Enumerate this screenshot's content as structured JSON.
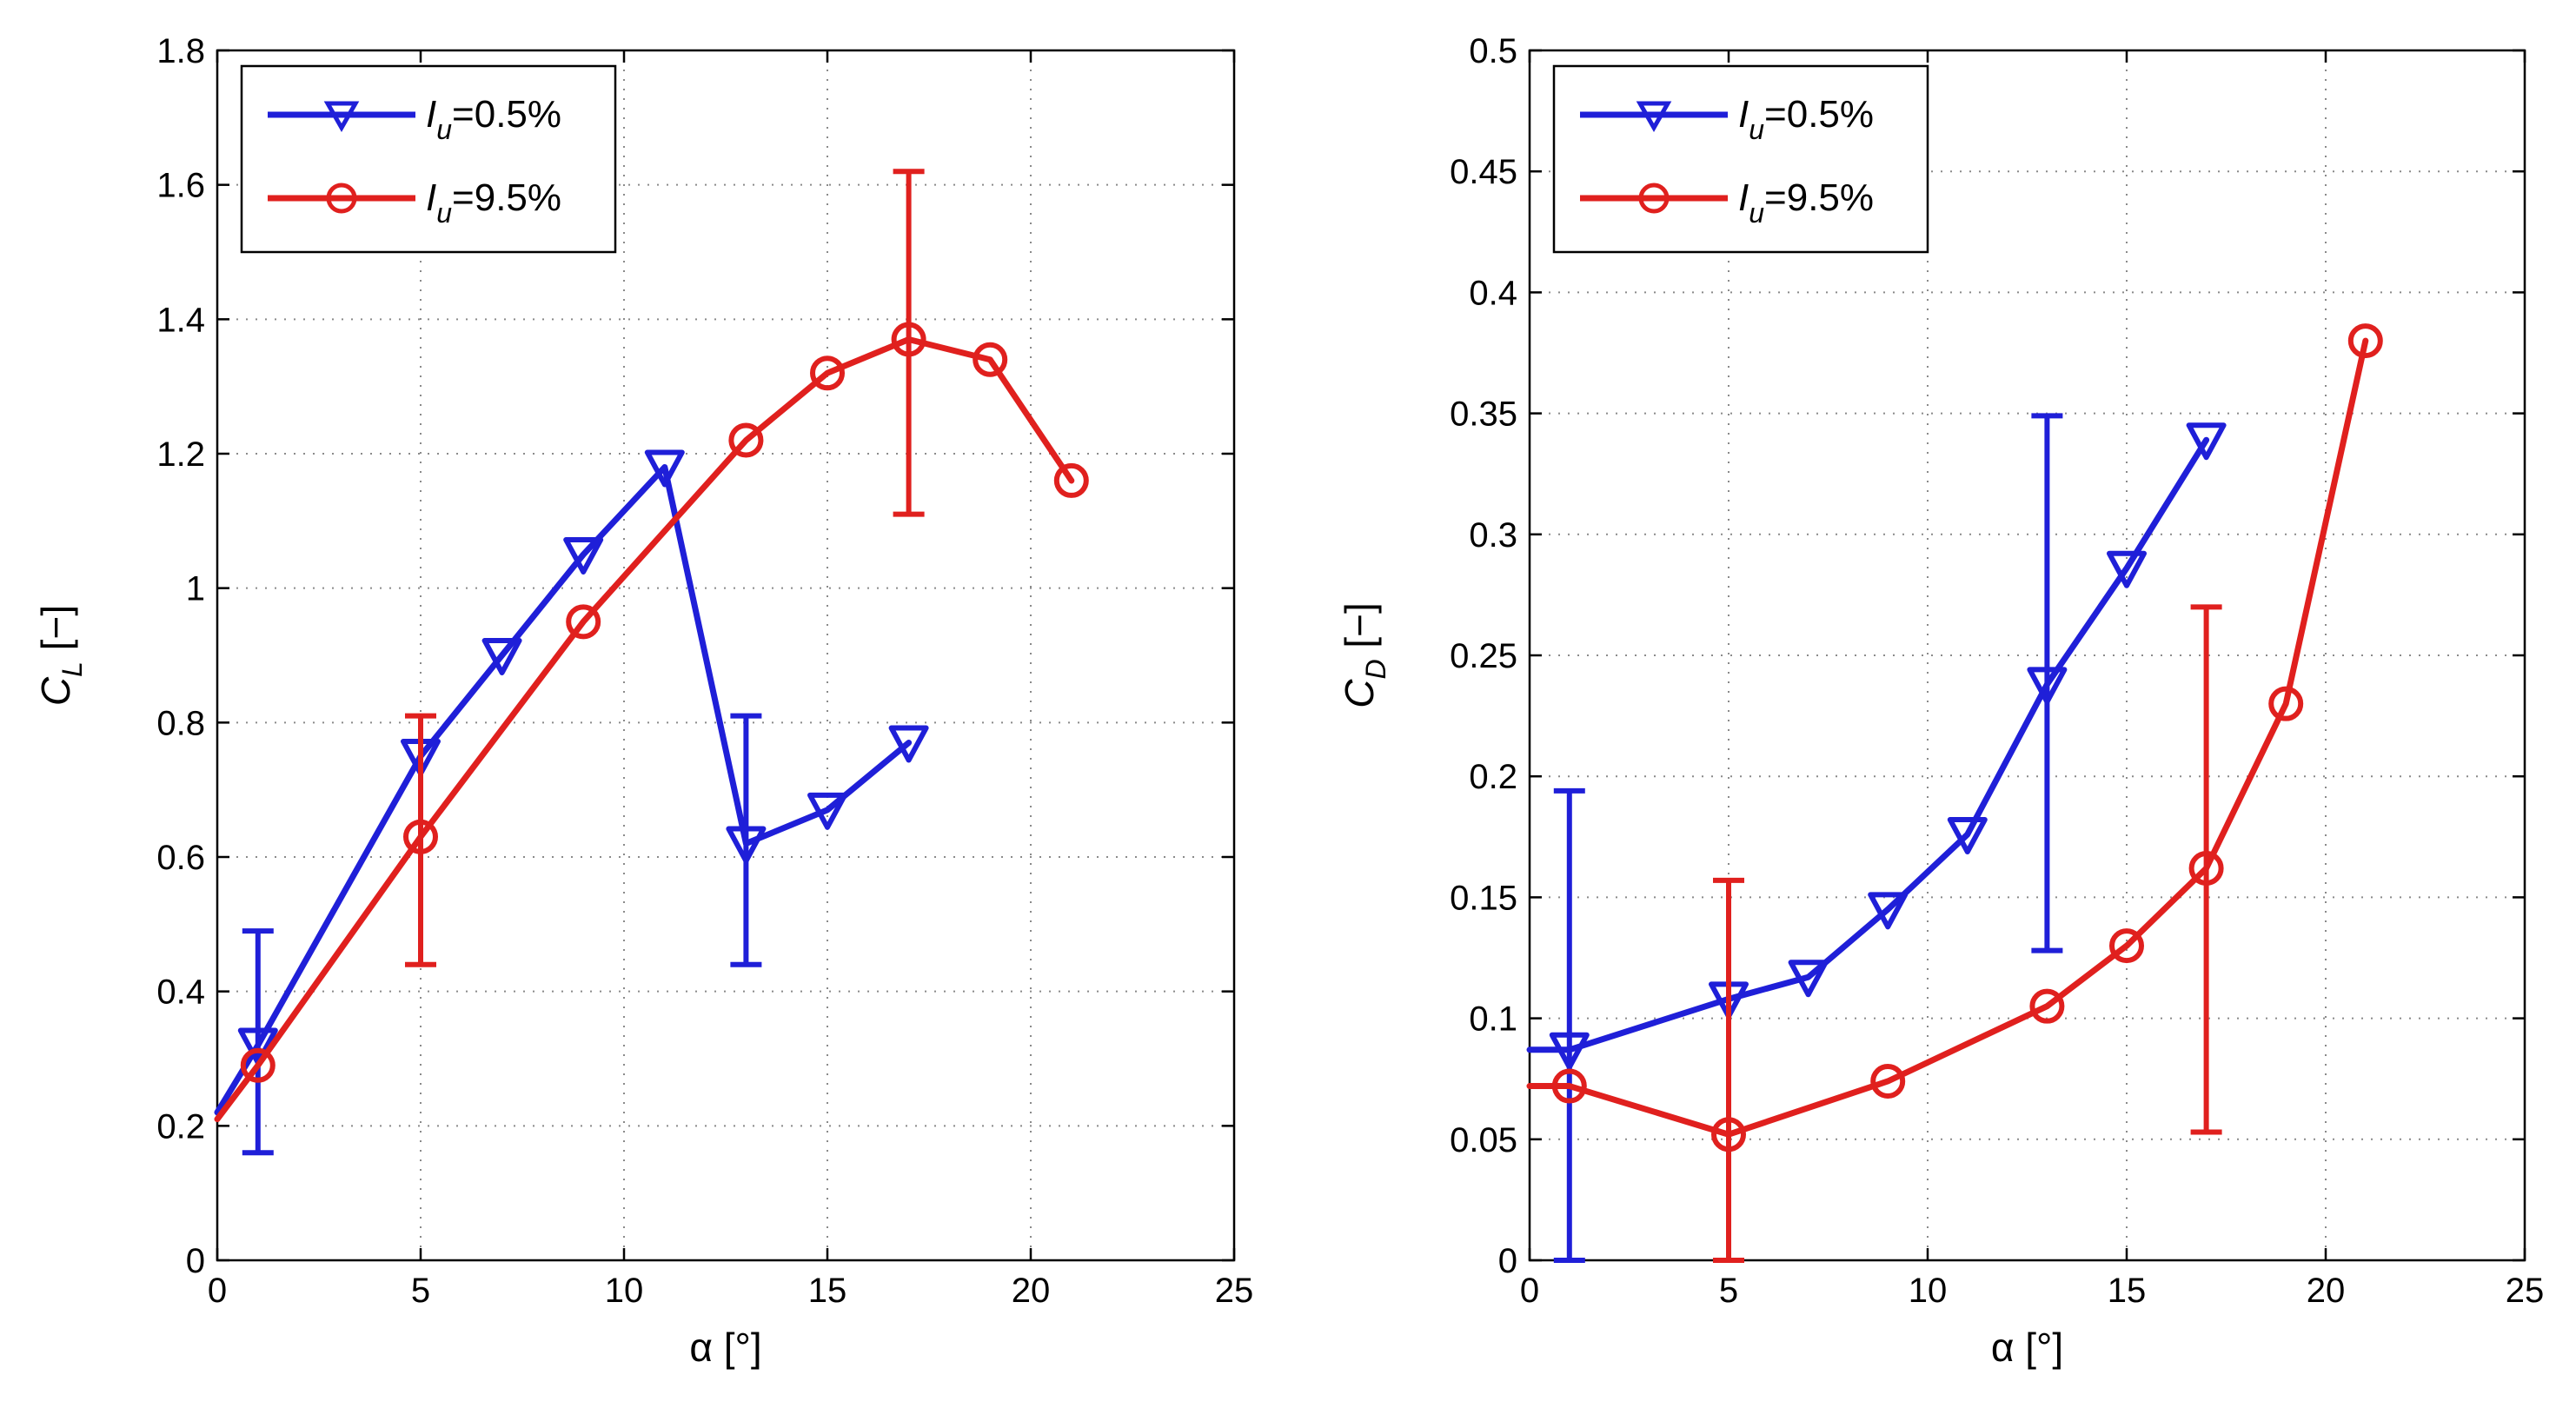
{
  "chart_data": [
    {
      "type": "line",
      "id": "cl",
      "xlabel": "α [°]",
      "ylabel_main": "C",
      "ylabel_sub": "L",
      "ylabel_unit": " [−]",
      "xlim": [
        0,
        25
      ],
      "ylim": [
        0,
        1.8
      ],
      "xticks": [
        0,
        5,
        10,
        15,
        20,
        25
      ],
      "xtick_labels": [
        "0",
        "5",
        "10",
        "15",
        "20",
        "25"
      ],
      "yticks": [
        0,
        0.2,
        0.4,
        0.6,
        0.8,
        1,
        1.2,
        1.4,
        1.6,
        1.8
      ],
      "ytick_labels": [
        "0",
        "0.2",
        "0.4",
        "0.6",
        "0.8",
        "1",
        "1.2",
        "1.4",
        "1.6",
        "1.8"
      ],
      "grid": true,
      "legend_position": "top-left",
      "series": [
        {
          "name": "Iu=0.5%",
          "legend_var": "I",
          "legend_sub": "u",
          "legend_val": "=0.5%",
          "color": "#1f1fd8",
          "marker": "triangle-down",
          "line_x": [
            0,
            1,
            5,
            7,
            9,
            11,
            13,
            15,
            17
          ],
          "line_y": [
            0.22,
            0.32,
            0.75,
            0.9,
            1.05,
            1.18,
            0.62,
            0.67,
            0.77
          ],
          "marker_x": [
            1,
            5,
            7,
            9,
            11,
            13,
            15,
            17
          ],
          "marker_y": [
            0.32,
            0.75,
            0.9,
            1.05,
            1.18,
            0.62,
            0.67,
            0.77
          ],
          "errorbars": [
            {
              "x": 1,
              "low": 0.16,
              "high": 0.49
            },
            {
              "x": 13,
              "low": 0.44,
              "high": 0.81
            }
          ]
        },
        {
          "name": "Iu=9.5%",
          "legend_var": "I",
          "legend_sub": "u",
          "legend_val": "=9.5%",
          "color": "#e0201e",
          "marker": "circle",
          "line_x": [
            0,
            1,
            5,
            9,
            13,
            15,
            17,
            19,
            21
          ],
          "line_y": [
            0.21,
            0.29,
            0.63,
            0.95,
            1.22,
            1.32,
            1.37,
            1.34,
            1.16
          ],
          "marker_x": [
            1,
            5,
            9,
            13,
            15,
            17,
            19,
            21
          ],
          "marker_y": [
            0.29,
            0.63,
            0.95,
            1.22,
            1.32,
            1.37,
            1.34,
            1.16
          ],
          "errorbars": [
            {
              "x": 5,
              "low": 0.44,
              "high": 0.81
            },
            {
              "x": 17,
              "low": 1.11,
              "high": 1.62
            }
          ]
        }
      ]
    },
    {
      "type": "line",
      "id": "cd",
      "xlabel": "α [°]",
      "ylabel_main": "C",
      "ylabel_sub": "D",
      "ylabel_unit": " [−]",
      "xlim": [
        0,
        25
      ],
      "ylim": [
        0,
        0.5
      ],
      "xticks": [
        0,
        5,
        10,
        15,
        20,
        25
      ],
      "xtick_labels": [
        "0",
        "5",
        "10",
        "15",
        "20",
        "25"
      ],
      "yticks": [
        0,
        0.05,
        0.1,
        0.15,
        0.2,
        0.25,
        0.3,
        0.35,
        0.4,
        0.45,
        0.5
      ],
      "ytick_labels": [
        "0",
        "0.05",
        "0.1",
        "0.15",
        "0.2",
        "0.25",
        "0.3",
        "0.35",
        "0.4",
        "0.45",
        "0.5"
      ],
      "grid": true,
      "legend_position": "top-left",
      "series": [
        {
          "name": "Iu=0.5%",
          "legend_var": "I",
          "legend_sub": "u",
          "legend_val": "=0.5%",
          "color": "#1f1fd8",
          "marker": "triangle-down",
          "line_x": [
            0,
            1,
            5,
            7,
            9,
            11,
            13,
            15,
            17
          ],
          "line_y": [
            0.087,
            0.087,
            0.108,
            0.117,
            0.145,
            0.176,
            0.238,
            0.286,
            0.339
          ],
          "marker_x": [
            1,
            5,
            7,
            9,
            11,
            13,
            15,
            17
          ],
          "marker_y": [
            0.087,
            0.108,
            0.117,
            0.145,
            0.176,
            0.238,
            0.286,
            0.339
          ],
          "errorbars": [
            {
              "x": 1,
              "low": 0.0,
              "high": 0.194
            },
            {
              "x": 13,
              "low": 0.128,
              "high": 0.349
            }
          ]
        },
        {
          "name": "Iu=9.5%",
          "legend_var": "I",
          "legend_sub": "u",
          "legend_val": "=9.5%",
          "color": "#e0201e",
          "marker": "circle",
          "line_x": [
            0,
            1,
            5,
            9,
            13,
            15,
            17,
            19,
            21
          ],
          "line_y": [
            0.072,
            0.072,
            0.052,
            0.074,
            0.105,
            0.13,
            0.162,
            0.23,
            0.38
          ],
          "marker_x": [
            1,
            5,
            9,
            13,
            15,
            17,
            19,
            21
          ],
          "marker_y": [
            0.072,
            0.052,
            0.074,
            0.105,
            0.13,
            0.162,
            0.23,
            0.38
          ],
          "errorbars": [
            {
              "x": 5,
              "low": 0.0,
              "high": 0.157
            },
            {
              "x": 17,
              "low": 0.053,
              "high": 0.27
            }
          ]
        }
      ]
    }
  ]
}
